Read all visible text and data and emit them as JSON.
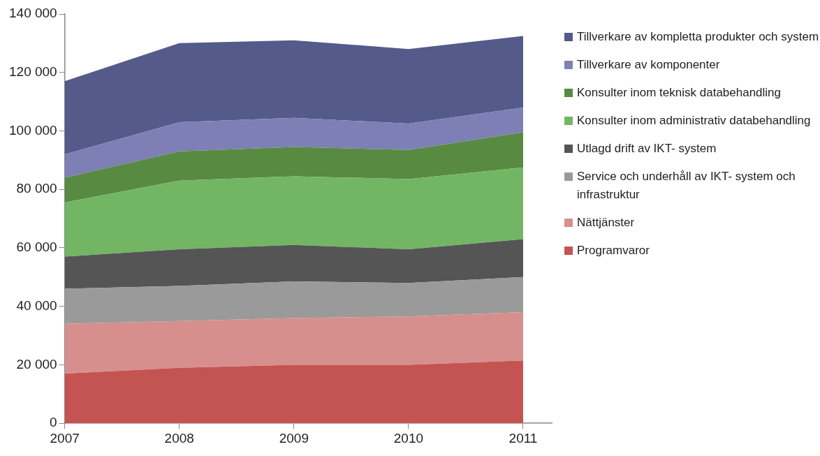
{
  "chart_data": {
    "type": "area",
    "stacked": true,
    "x": [
      2007,
      2008,
      2009,
      2010,
      2011
    ],
    "xlim": [
      2007,
      2011.25
    ],
    "xticks": [
      2007,
      2008,
      2009,
      2010,
      2011
    ],
    "ylim": [
      0,
      140000
    ],
    "yticks": [
      {
        "value": 0,
        "label": "0"
      },
      {
        "value": 20000,
        "label": "20 000"
      },
      {
        "value": 40000,
        "label": "40 000"
      },
      {
        "value": 60000,
        "label": "60 000"
      },
      {
        "value": 80000,
        "label": "80 000"
      },
      {
        "value": 100000,
        "label": "100 000"
      },
      {
        "value": 120000,
        "label": "120 000"
      },
      {
        "value": 140000,
        "label": "140 000"
      }
    ],
    "grid": false,
    "legend": "right",
    "series": [
      {
        "name": "Programvaror",
        "color": "#c45452",
        "values": [
          17000,
          19000,
          20000,
          20000,
          21500
        ]
      },
      {
        "name": "Nättjänster",
        "color": "#d68f8c",
        "values": [
          17000,
          16000,
          16000,
          16500,
          16500
        ]
      },
      {
        "name": "Service och underhåll av IKT- system och infrastruktur",
        "color": "#9a9a9a",
        "values": [
          12000,
          12000,
          12500,
          11500,
          12000
        ]
      },
      {
        "name": "Utlagd drift av IKT- system",
        "color": "#555555",
        "values": [
          11000,
          12500,
          12500,
          11500,
          13000
        ]
      },
      {
        "name": "Konsulter inom administrativ databehandling",
        "color": "#72b664",
        "values": [
          18500,
          23500,
          23500,
          24000,
          24500
        ]
      },
      {
        "name": "Konsulter inom teknisk databehandling",
        "color": "#588a42",
        "values": [
          8500,
          10000,
          10000,
          10000,
          12000
        ]
      },
      {
        "name": "Tillverkare av komponenter",
        "color": "#7d7fb5",
        "values": [
          8000,
          10000,
          10000,
          9000,
          8500
        ]
      },
      {
        "name": "Tillverkare av kompletta produkter och system",
        "color": "#545a8a",
        "values": [
          25000,
          27000,
          26500,
          25500,
          24500
        ]
      }
    ]
  }
}
